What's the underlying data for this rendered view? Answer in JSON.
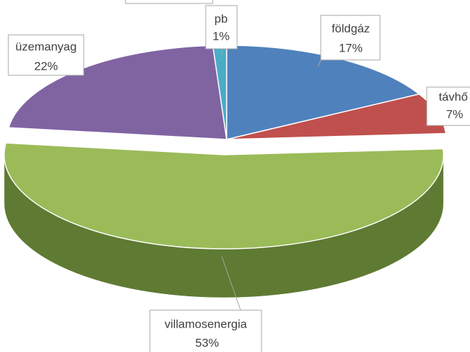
{
  "chart_data": {
    "type": "pie3d",
    "categories": [
      "földgáz",
      "távhő",
      "villamosenergia",
      "üzemanyag",
      "pb"
    ],
    "values": [
      17,
      7,
      53,
      22,
      1
    ],
    "value_labels": [
      "17%",
      "7%",
      "53%",
      "22%",
      "1%"
    ],
    "colors": [
      "#4f81bd",
      "#c0504d",
      "#9bbb59",
      "#8064a2",
      "#4bacc6"
    ],
    "side_colors": [
      "#3a6190",
      "#8f3a38",
      "#5f7a32",
      "#5e4a7a",
      "#3a8599"
    ]
  }
}
